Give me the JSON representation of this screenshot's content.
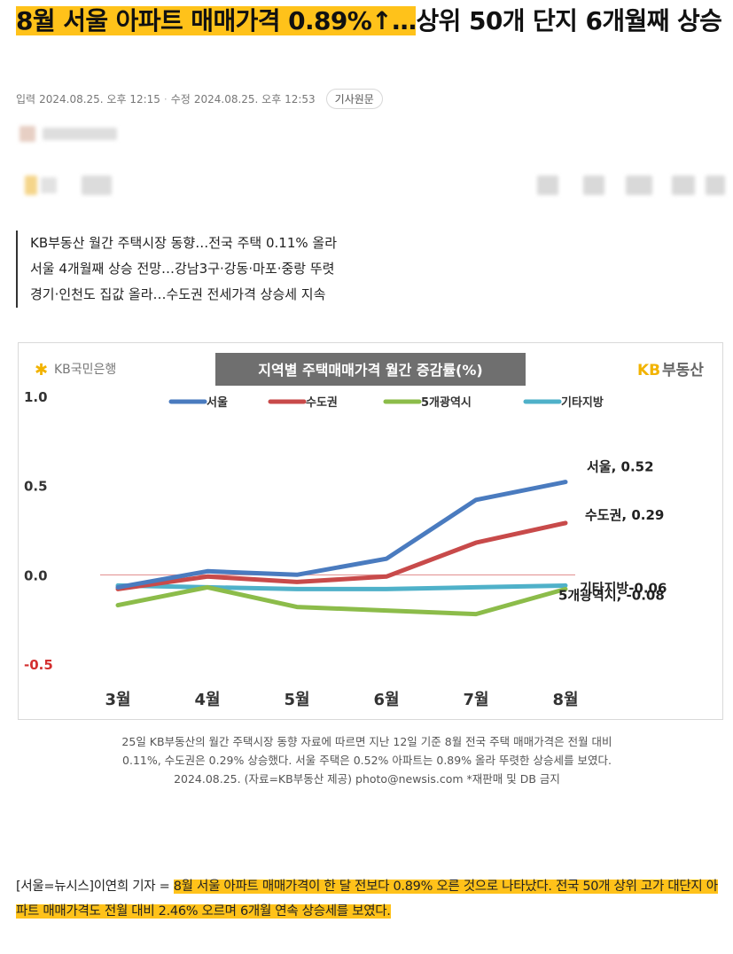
{
  "article": {
    "headline_highlight": "8월 서울 아파트 매매가격 0.89%↑…",
    "headline_rest": "상위 50개 단지 6개월째 상승",
    "meta": {
      "input_label": "입력",
      "input_time": "2024.08.25. 오후 12:15",
      "edit_label": "수정",
      "edit_time": "2024.08.25. 오후 12:53",
      "original_button": "기사원문"
    },
    "summary": [
      "KB부동산 월간 주택시장 동향…전국 주택 0.11% 올라",
      "서울 4개월째 상승 전망…강남3구·강동·마포·중랑 뚜렷",
      "경기·인천도 집값 올라…수도권 전세가격 상승세 지속"
    ],
    "caption": [
      "25일 KB부동산의 월간 주택시장 동향 자료에 따르면 지난 12일 기준 8월 전국 주택 매매가격은 전월 대비",
      "0.11%, 수도권은 0.29% 상승했다. 서울 주택은 0.52% 아파트는 0.89% 올라 뚜렷한 상승세를 보였다.",
      "2024.08.25. (자료=KB부동산 제공) photo@newsis.com *재판매 및 DB 금지"
    ],
    "body_prefix": "[서울=뉴시스]이연희 기자 = ",
    "body_highlight": "8월 서울 아파트 매매가격이 한 달 전보다 0.89% 오른 것으로 나타났다. 전국 50개 상위 고가 대단지 아파트 매매가격도 전월 대비 2.46% 오르며 6개월 연속 상승세를 보였다."
  },
  "chart_logos": {
    "bank": "KB국민은행",
    "realestate_kb": "KB",
    "realestate_name": "부동산"
  },
  "colors": {
    "highlight": "#ffc21a",
    "seoul": "#4a7bbf",
    "capital": "#c84a4a",
    "metro5": "#8cbc4a",
    "other": "#4fb1c9",
    "kb_yellow": "#f2b300"
  },
  "chart_data": {
    "type": "line",
    "title": "지역별 주택매매가격 월간 증감률(%)",
    "categories": [
      "3월",
      "4월",
      "5월",
      "6월",
      "7월",
      "8월"
    ],
    "ylim": [
      -0.5,
      1.0
    ],
    "yticks": [
      {
        "value": 1.0,
        "label": "1.0"
      },
      {
        "value": 0.5,
        "label": "0.5"
      },
      {
        "value": 0.0,
        "label": "0.0"
      },
      {
        "value": -0.5,
        "label": "-0.5"
      }
    ],
    "grid": false,
    "legend": "top",
    "series": [
      {
        "name": "서울",
        "color": "#4a7bbf",
        "values": [
          -0.07,
          0.02,
          0.0,
          0.09,
          0.42,
          0.52
        ],
        "end_label": "서울, 0.52"
      },
      {
        "name": "수도권",
        "color": "#c84a4a",
        "values": [
          -0.08,
          -0.01,
          -0.04,
          -0.01,
          0.18,
          0.29
        ],
        "end_label": "수도권, 0.29"
      },
      {
        "name": "5개광역시",
        "color": "#8cbc4a",
        "values": [
          -0.17,
          -0.07,
          -0.18,
          -0.2,
          -0.22,
          -0.08
        ],
        "end_label": "5개광역시, -0.08"
      },
      {
        "name": "기타지방",
        "color": "#4fb1c9",
        "values": [
          -0.06,
          -0.07,
          -0.08,
          -0.08,
          -0.07,
          -0.06
        ],
        "end_label": "기타지방-0.06"
      }
    ]
  }
}
